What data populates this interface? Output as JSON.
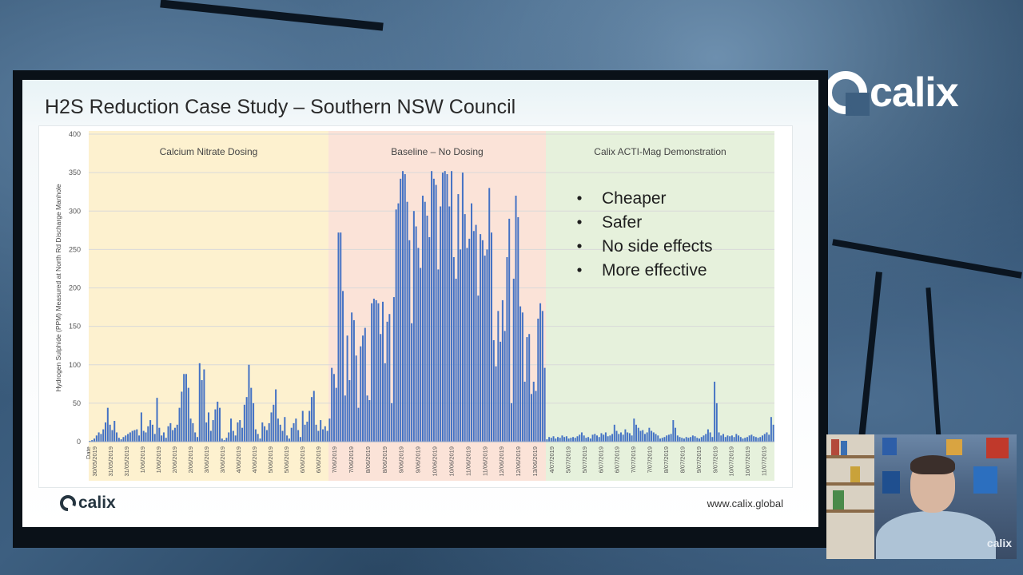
{
  "slide": {
    "title": "H2S Reduction Case Study – Southern NSW Council",
    "footer_logo": "calix",
    "footer_url": "www.calix.global"
  },
  "brand": {
    "logo_text": "calix"
  },
  "webcam": {
    "logo_text": "calix"
  },
  "chart_data": {
    "type": "bar",
    "ylabel": "Hydrogen Sulphide (PPM) Measured at North Rd Discharge Manhole",
    "xlabel": "Date",
    "ylim": [
      0,
      400
    ],
    "yticks": [
      0,
      50,
      100,
      150,
      200,
      250,
      300,
      350,
      400
    ],
    "grid": true,
    "regions": [
      {
        "label": "Calcium Nitrate Dosing",
        "color": "#fdf1cf"
      },
      {
        "label": "Baseline – No Dosing",
        "color": "#fbe3d8"
      },
      {
        "label": "Calix ACTI-Mag Demonstration",
        "color": "#e6f1dc"
      }
    ],
    "annotations": [
      "Cheaper",
      "Safer",
      "No side effects",
      "More effective"
    ],
    "bar_color": "#4472c4",
    "xtick_labels": [
      "30/05/2019",
      "31/05/2019",
      "31/05/2019",
      "1/06/2019",
      "1/06/2019",
      "2/06/2019",
      "2/06/2019",
      "3/06/2019",
      "3/06/2019",
      "4/06/2019",
      "4/06/2019",
      "5/06/2019",
      "5/06/2019",
      "6/06/2019",
      "6/06/2019",
      "7/06/2019",
      "7/06/2019",
      "8/06/2019",
      "8/06/2019",
      "9/06/2019",
      "9/06/2019",
      "10/06/2019",
      "10/06/2019",
      "11/06/2019",
      "11/06/2019",
      "12/06/2019",
      "12/06/2019",
      "13/06/2019",
      "4/07/2019",
      "5/07/2019",
      "5/07/2019",
      "6/07/2019",
      "6/07/2019",
      "7/07/2019",
      "7/07/2019",
      "8/07/2019",
      "8/07/2019",
      "9/07/2019",
      "9/07/2019",
      "10/07/2019",
      "10/07/2019",
      "11/07/2019"
    ],
    "series": [
      {
        "name": "Calcium Nitrate Dosing",
        "values": [
          1,
          2,
          4,
          8,
          12,
          10,
          16,
          25,
          44,
          22,
          15,
          27,
          12,
          5,
          3,
          6,
          8,
          10,
          12,
          14,
          15,
          16,
          8,
          38,
          14,
          12,
          20,
          28,
          22,
          10,
          57,
          18,
          8,
          12,
          5,
          20,
          24,
          15,
          18,
          22,
          44,
          65,
          88,
          88,
          70,
          30,
          24,
          12,
          6,
          102,
          80,
          94,
          25,
          38,
          14,
          28,
          42,
          52,
          44,
          4,
          2,
          5,
          12,
          30,
          14,
          8,
          25,
          28,
          18,
          48,
          58,
          100,
          70,
          50,
          16,
          10,
          4,
          25,
          20,
          15,
          24,
          38,
          48,
          68,
          30,
          22,
          14,
          32,
          8,
          4,
          18,
          24,
          30,
          15,
          6,
          40,
          22,
          26,
          40,
          58,
          66,
          22,
          14,
          28,
          16,
          20,
          14
        ]
      },
      {
        "name": "Baseline – No Dosing",
        "values": [
          30,
          96,
          88,
          70,
          272,
          272,
          196,
          60,
          138,
          80,
          168,
          158,
          112,
          44,
          124,
          138,
          148,
          60,
          54,
          180,
          186,
          184,
          180,
          140,
          182,
          102,
          156,
          166,
          50,
          188,
          302,
          310,
          342,
          352,
          348,
          312,
          262,
          154,
          300,
          280,
          252,
          226,
          320,
          312,
          294,
          266,
          352,
          342,
          334,
          224,
          306,
          350,
          352,
          348,
          306,
          352,
          240,
          212,
          322,
          250,
          350,
          296,
          252,
          264,
          310,
          274,
          282,
          190,
          270,
          262,
          242,
          250,
          330,
          272,
          132,
          98,
          170,
          130,
          184,
          144,
          240,
          290,
          50,
          212,
          320,
          292,
          176,
          168,
          78,
          136,
          140,
          62,
          78,
          66,
          160,
          180,
          170,
          96
        ]
      },
      {
        "name": "Calix ACTI-Mag Demonstration",
        "values": [
          3,
          6,
          5,
          7,
          4,
          6,
          5,
          8,
          6,
          7,
          4,
          5,
          6,
          5,
          7,
          9,
          12,
          8,
          5,
          6,
          4,
          9,
          10,
          8,
          6,
          11,
          9,
          12,
          7,
          8,
          10,
          22,
          14,
          10,
          12,
          9,
          16,
          12,
          11,
          8,
          30,
          22,
          18,
          14,
          15,
          10,
          12,
          18,
          14,
          12,
          10,
          8,
          4,
          5,
          6,
          8,
          9,
          10,
          28,
          18,
          8,
          6,
          5,
          4,
          6,
          5,
          6,
          8,
          7,
          5,
          4,
          6,
          8,
          10,
          16,
          12,
          6,
          78,
          50,
          12,
          8,
          10,
          6,
          8,
          7,
          8,
          6,
          10,
          8,
          6,
          4,
          5,
          6,
          8,
          9,
          7,
          6,
          5,
          6,
          8,
          10,
          12,
          9,
          32,
          22
        ]
      }
    ]
  }
}
